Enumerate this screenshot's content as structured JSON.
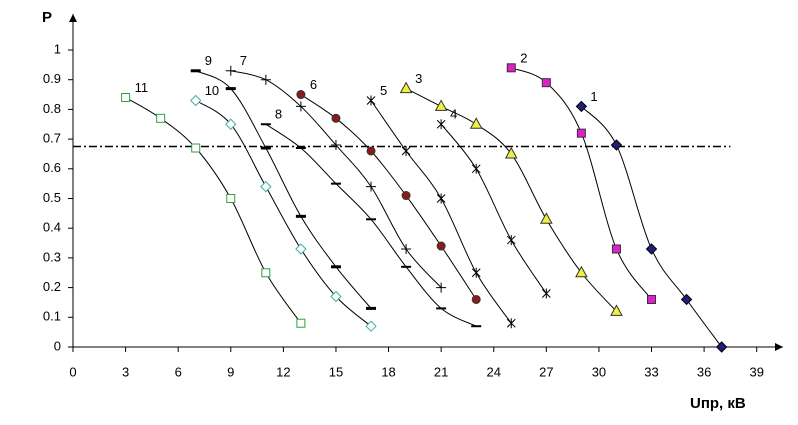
{
  "chart_data": {
    "type": "line",
    "y_label": "P",
    "x_label": "Uпр, кВ",
    "xlim": [
      0,
      40.5
    ],
    "ylim": [
      0,
      1.1
    ],
    "xticks": [
      0,
      3,
      6,
      9,
      12,
      15,
      18,
      21,
      24,
      27,
      30,
      33,
      36,
      39
    ],
    "yticks": [
      0,
      0.1,
      0.2,
      0.3,
      0.4,
      0.5,
      0.6,
      0.7,
      0.8,
      0.9,
      1
    ],
    "reference_line": 0.675,
    "series": [
      {
        "name": "1",
        "marker": "diamond",
        "color": "#1f1f7a",
        "x": [
          29,
          31,
          33,
          35,
          37
        ],
        "values": [
          0.81,
          0.68,
          0.33,
          0.16,
          0.0
        ]
      },
      {
        "name": "2",
        "marker": "square",
        "color": "#e020c8",
        "x": [
          25,
          27,
          29,
          31,
          33
        ],
        "values": [
          0.94,
          0.89,
          0.72,
          0.33,
          0.16
        ]
      },
      {
        "name": "3",
        "marker": "triangle",
        "color": "#f0f040",
        "x": [
          19,
          21,
          23,
          25,
          27,
          29,
          31
        ],
        "values": [
          0.87,
          0.81,
          0.75,
          0.65,
          0.43,
          0.25,
          0.12
        ]
      },
      {
        "name": "4",
        "marker": "asterisk",
        "color": "#000000",
        "x": [
          21,
          23,
          25,
          27
        ],
        "values": [
          0.75,
          0.6,
          0.36,
          0.18
        ]
      },
      {
        "name": "5",
        "marker": "asterisk",
        "color": "#000000",
        "x": [
          17,
          19,
          21,
          23,
          25
        ],
        "values": [
          0.83,
          0.66,
          0.5,
          0.25,
          0.08
        ]
      },
      {
        "name": "6",
        "marker": "circle",
        "color": "#8b1a1a",
        "x": [
          13,
          15,
          17,
          19,
          21,
          23
        ],
        "values": [
          0.85,
          0.77,
          0.66,
          0.51,
          0.34,
          0.16
        ]
      },
      {
        "name": "7",
        "marker": "plus",
        "color": "#000000",
        "x": [
          9,
          11,
          13,
          15,
          17,
          19,
          21
        ],
        "values": [
          0.93,
          0.9,
          0.81,
          0.68,
          0.54,
          0.33,
          0.2
        ]
      },
      {
        "name": "8",
        "marker": "dash",
        "color": "#000000",
        "x": [
          11,
          13,
          15,
          17,
          19,
          21,
          23
        ],
        "values": [
          0.75,
          0.67,
          0.55,
          0.43,
          0.27,
          0.13,
          0.07
        ]
      },
      {
        "name": "9",
        "marker": "bolddash",
        "color": "#000000",
        "x": [
          7,
          9,
          11,
          13,
          15,
          17
        ],
        "values": [
          0.93,
          0.87,
          0.67,
          0.44,
          0.27,
          0.13
        ]
      },
      {
        "name": "10",
        "marker": "hollow-diamond",
        "color": "#40b0a0",
        "x": [
          7,
          9,
          11,
          13,
          15,
          17
        ],
        "values": [
          0.83,
          0.75,
          0.54,
          0.33,
          0.17,
          0.07
        ]
      },
      {
        "name": "11",
        "marker": "hollow-square",
        "color": "#30a040",
        "x": [
          3,
          5,
          7,
          9,
          11,
          13
        ],
        "values": [
          0.84,
          0.77,
          0.67,
          0.5,
          0.25,
          0.08
        ]
      }
    ]
  }
}
